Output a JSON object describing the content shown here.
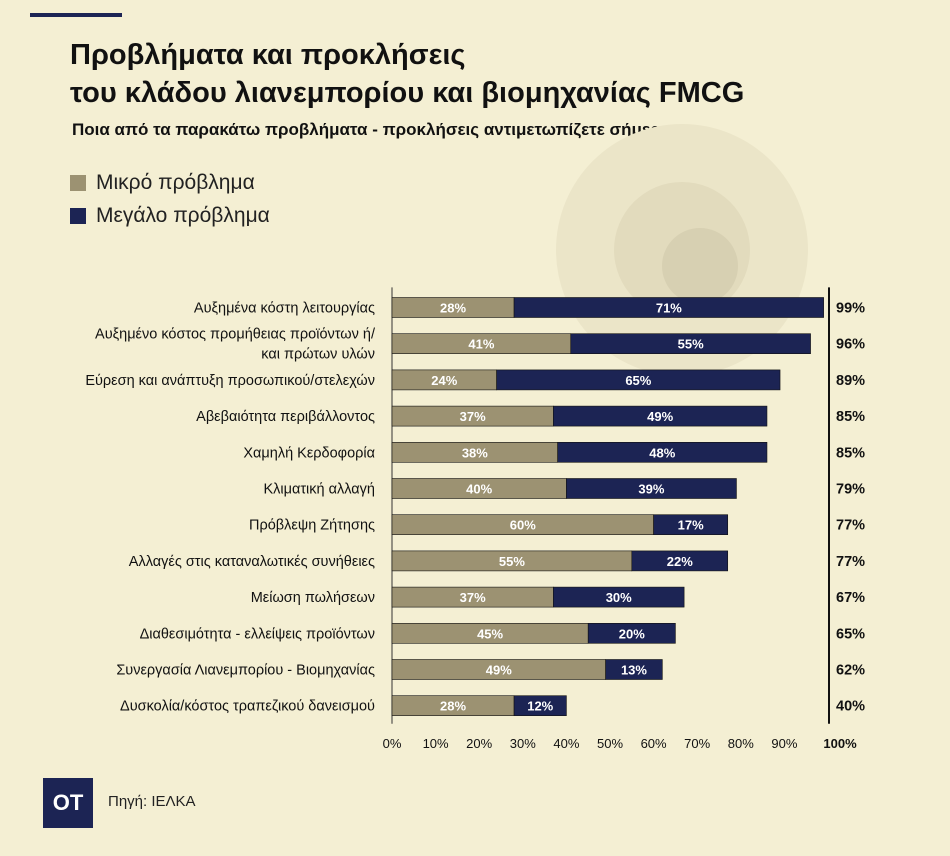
{
  "header": {
    "title_line1": "Προβλήματα και προκλήσεις",
    "title_line2": "του κλάδου λιανεμπορίου και βιομηχανίας FMCG",
    "subtitle": "Ποια από τα παρακάτω προβλήματα - προκλήσεις αντιμετωπίζετε σήμερα:"
  },
  "footer": {
    "logo": "ΟΤ",
    "source": "Πηγή: ΙΕΛΚΑ"
  },
  "colors": {
    "background": "#f4efd3",
    "small": "#9c9272",
    "large": "#1c2454",
    "text": "#111111"
  },
  "chart_data": {
    "type": "bar",
    "orientation": "horizontal",
    "stacked": true,
    "legend_position": "top-left",
    "categories": [
      [
        "Αυξημένα κόστη λειτουργίας"
      ],
      [
        "Αυξημένο κόστος προμήθειας προϊόντων ή/",
        "και πρώτων υλών"
      ],
      [
        "Εύρεση και ανάπτυξη προσωπικού/στελεχών"
      ],
      [
        "Αβεβαιότητα περιβάλλοντος"
      ],
      [
        "Χαμηλή Κερδοφορία"
      ],
      [
        "Κλιματική αλλαγή"
      ],
      [
        "Πρόβλεψη Ζήτησης"
      ],
      [
        "Αλλαγές στις καταναλωτικές συνήθειες"
      ],
      [
        "Μείωση πωλήσεων"
      ],
      [
        "Διαθεσιμότητα - ελλείψεις προϊόντων"
      ],
      [
        "Συνεργασία Λιανεμπορίου - Βιομηχανίας"
      ],
      [
        "Δυσκολία/κόστος τραπεζικού δανεισμού"
      ]
    ],
    "series": [
      {
        "name": "Μικρό πρόβλημα",
        "color": "#9c9272",
        "values": [
          28,
          41,
          24,
          37,
          38,
          40,
          60,
          55,
          37,
          45,
          49,
          28
        ],
        "labels": [
          "28%",
          "41%",
          "24%",
          "37%",
          "38%",
          "40%",
          "60%",
          "55%",
          "37%",
          "45%",
          "49%",
          "28%"
        ]
      },
      {
        "name": "Μεγάλο πρόβλημα",
        "color": "#1c2454",
        "values": [
          71,
          55,
          65,
          49,
          48,
          39,
          17,
          22,
          30,
          20,
          13,
          12
        ],
        "labels": [
          "71%",
          "55%",
          "65%",
          "49%",
          "48%",
          "39%",
          "17%",
          "22%",
          "30%",
          "20%",
          "13%",
          "12%"
        ]
      }
    ],
    "totals": [
      "99%",
      "96%",
      "89%",
      "85%",
      "85%",
      "79%",
      "77%",
      "77%",
      "67%",
      "65%",
      "62%",
      "40%"
    ],
    "xlim": [
      0,
      100
    ],
    "ticks": [
      0,
      10,
      20,
      30,
      40,
      50,
      60,
      70,
      80,
      90,
      100
    ],
    "tick_labels": [
      "0%",
      "10%",
      "20%",
      "30%",
      "40%",
      "50%",
      "60%",
      "70%",
      "80%",
      "90%",
      "100%"
    ],
    "grid": false
  }
}
